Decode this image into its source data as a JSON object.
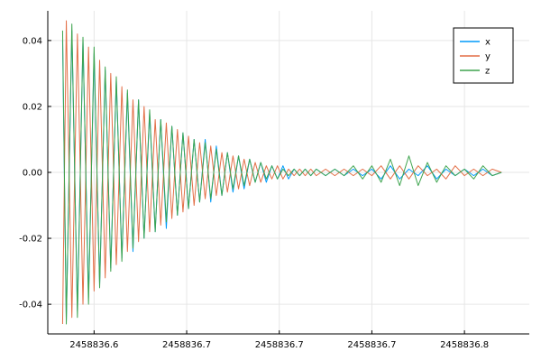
{
  "chart_data": {
    "type": "line",
    "title": "",
    "xlabel": "",
    "ylabel": "",
    "grid": true,
    "legend_position": "top-right",
    "xlim": [
      2458836.575,
      2458836.835
    ],
    "ylim": [
      -0.049,
      0.049
    ],
    "x_ticks": [
      {
        "value": 2458836.6,
        "label": "2458836.6"
      },
      {
        "value": 2458836.65,
        "label": "2458836.7"
      },
      {
        "value": 2458836.7,
        "label": "2458836.7"
      },
      {
        "value": 2458836.75,
        "label": "2458836.7"
      },
      {
        "value": 2458836.8,
        "label": "2458836.8"
      }
    ],
    "y_ticks": [
      {
        "value": -0.04,
        "label": "-0.04"
      },
      {
        "value": -0.02,
        "label": "-0.02"
      },
      {
        "value": 0.0,
        "label": "0.00"
      },
      {
        "value": 0.02,
        "label": "0.02"
      },
      {
        "value": 0.04,
        "label": "0.04"
      }
    ],
    "series": [
      {
        "name": "x",
        "color": "#009AFA",
        "x": [
          2458836.583,
          2458836.585,
          2458836.588,
          2458836.591,
          2458836.594,
          2458836.597,
          2458836.6,
          2458836.603,
          2458836.606,
          2458836.609,
          2458836.612,
          2458836.615,
          2458836.618,
          2458836.621,
          2458836.624,
          2458836.627,
          2458836.63,
          2458836.633,
          2458836.636,
          2458836.639,
          2458836.642,
          2458836.645,
          2458836.648,
          2458836.651,
          2458836.654,
          2458836.657,
          2458836.66,
          2458836.663,
          2458836.666,
          2458836.669,
          2458836.672,
          2458836.675,
          2458836.678,
          2458836.681,
          2458836.684,
          2458836.687,
          2458836.69,
          2458836.693,
          2458836.696,
          2458836.699,
          2458836.702,
          2458836.705,
          2458836.708,
          2458836.711,
          2458836.714,
          2458836.717,
          2458836.72,
          2458836.725,
          2458836.73,
          2458836.735,
          2458836.74,
          2458836.745,
          2458836.75,
          2458836.755,
          2458836.76,
          2458836.765,
          2458836.77,
          2458836.775,
          2458836.78,
          2458836.785,
          2458836.79,
          2458836.795,
          2458836.8,
          2458836.805,
          2458836.81,
          2458836.815,
          2458836.82
        ],
        "values": [
          0.04,
          -0.045,
          0.043,
          -0.042,
          0.04,
          -0.038,
          0.036,
          -0.034,
          0.031,
          -0.029,
          0.028,
          -0.026,
          0.024,
          -0.024,
          0.022,
          -0.02,
          0.018,
          -0.018,
          0.016,
          -0.017,
          0.014,
          -0.013,
          0.012,
          -0.011,
          0.01,
          -0.009,
          0.01,
          -0.009,
          0.008,
          -0.007,
          0.006,
          -0.006,
          0.005,
          -0.005,
          0.004,
          -0.003,
          0.003,
          -0.003,
          0.002,
          -0.002,
          0.002,
          -0.002,
          0.001,
          -0.001,
          0.001,
          -0.001,
          0.001,
          -0.001,
          0.001,
          -0.001,
          0.001,
          -0.001,
          0.001,
          -0.002,
          0.002,
          -0.002,
          0.001,
          -0.001,
          0.002,
          -0.002,
          0.001,
          -0.001,
          0.001,
          -0.001,
          0.001,
          -0.001,
          0.0
        ]
      },
      {
        "name": "y",
        "color": "#E36F47",
        "x": [
          2458836.583,
          2458836.585,
          2458836.588,
          2458836.591,
          2458836.594,
          2458836.597,
          2458836.6,
          2458836.603,
          2458836.606,
          2458836.609,
          2458836.612,
          2458836.615,
          2458836.618,
          2458836.621,
          2458836.624,
          2458836.627,
          2458836.63,
          2458836.633,
          2458836.636,
          2458836.639,
          2458836.642,
          2458836.645,
          2458836.648,
          2458836.651,
          2458836.654,
          2458836.657,
          2458836.66,
          2458836.663,
          2458836.666,
          2458836.669,
          2458836.672,
          2458836.675,
          2458836.678,
          2458836.681,
          2458836.684,
          2458836.687,
          2458836.69,
          2458836.693,
          2458836.696,
          2458836.699,
          2458836.702,
          2458836.705,
          2458836.708,
          2458836.711,
          2458836.714,
          2458836.717,
          2458836.72,
          2458836.725,
          2458836.73,
          2458836.735,
          2458836.74,
          2458836.745,
          2458836.75,
          2458836.755,
          2458836.76,
          2458836.765,
          2458836.77,
          2458836.775,
          2458836.78,
          2458836.785,
          2458836.79,
          2458836.795,
          2458836.8,
          2458836.805,
          2458836.81,
          2458836.815,
          2458836.82
        ],
        "values": [
          -0.046,
          0.046,
          -0.044,
          0.042,
          -0.04,
          0.038,
          -0.036,
          0.034,
          -0.032,
          0.03,
          -0.028,
          0.026,
          -0.024,
          0.022,
          -0.021,
          0.02,
          -0.018,
          0.016,
          -0.016,
          0.015,
          -0.014,
          0.013,
          -0.012,
          0.011,
          -0.01,
          0.009,
          -0.008,
          0.008,
          -0.007,
          0.006,
          -0.006,
          0.005,
          -0.005,
          0.004,
          -0.004,
          0.003,
          -0.003,
          0.002,
          -0.002,
          0.002,
          -0.002,
          0.001,
          -0.001,
          0.001,
          -0.001,
          0.001,
          -0.001,
          0.001,
          -0.001,
          0.001,
          -0.001,
          0.001,
          -0.001,
          0.002,
          -0.002,
          0.002,
          -0.002,
          0.002,
          -0.001,
          0.001,
          -0.002,
          0.002,
          -0.001,
          0.001,
          -0.001,
          0.001,
          0.0
        ]
      },
      {
        "name": "z",
        "color": "#3EA44E",
        "x": [
          2458836.583,
          2458836.585,
          2458836.588,
          2458836.591,
          2458836.594,
          2458836.597,
          2458836.6,
          2458836.603,
          2458836.606,
          2458836.609,
          2458836.612,
          2458836.615,
          2458836.618,
          2458836.621,
          2458836.624,
          2458836.627,
          2458836.63,
          2458836.633,
          2458836.636,
          2458836.639,
          2458836.642,
          2458836.645,
          2458836.648,
          2458836.651,
          2458836.654,
          2458836.657,
          2458836.66,
          2458836.663,
          2458836.666,
          2458836.669,
          2458836.672,
          2458836.675,
          2458836.678,
          2458836.681,
          2458836.684,
          2458836.687,
          2458836.69,
          2458836.693,
          2458836.696,
          2458836.699,
          2458836.702,
          2458836.705,
          2458836.708,
          2458836.711,
          2458836.714,
          2458836.717,
          2458836.72,
          2458836.725,
          2458836.73,
          2458836.735,
          2458836.74,
          2458836.745,
          2458836.75,
          2458836.755,
          2458836.76,
          2458836.765,
          2458836.77,
          2458836.775,
          2458836.78,
          2458836.785,
          2458836.79,
          2458836.795,
          2458836.8,
          2458836.805,
          2458836.81,
          2458836.815,
          2458836.82
        ],
        "values": [
          0.043,
          -0.046,
          0.045,
          -0.044,
          0.041,
          -0.04,
          0.038,
          -0.035,
          0.032,
          -0.03,
          0.029,
          -0.027,
          0.025,
          -0.023,
          0.022,
          -0.02,
          0.019,
          -0.018,
          0.016,
          -0.015,
          0.014,
          -0.013,
          0.012,
          -0.011,
          0.01,
          -0.009,
          0.009,
          -0.008,
          0.007,
          -0.007,
          0.006,
          -0.005,
          0.005,
          -0.004,
          0.004,
          -0.003,
          0.003,
          -0.002,
          0.002,
          -0.002,
          0.001,
          -0.001,
          0.001,
          -0.001,
          0.001,
          -0.001,
          0.001,
          -0.001,
          0.001,
          -0.001,
          0.002,
          -0.002,
          0.002,
          -0.003,
          0.004,
          -0.004,
          0.005,
          -0.004,
          0.003,
          -0.003,
          0.002,
          -0.001,
          0.001,
          -0.002,
          0.002,
          -0.001,
          0.0
        ]
      }
    ]
  }
}
